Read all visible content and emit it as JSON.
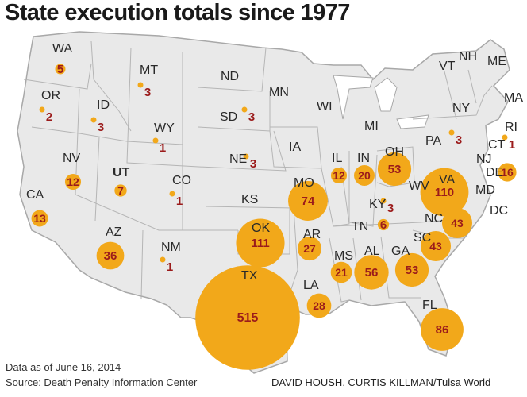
{
  "title": "State execution totals since 1977",
  "footer": {
    "data_date": "Data as of June 16, 2014",
    "source": "Source: Death Penalty Information Center",
    "credit": "DAVID HOUSH, CURTIS KILLMAN/Tulsa World"
  },
  "colors": {
    "bubble": "#f2a81a",
    "value": "#9b1b1b",
    "land": "#e9e9e9",
    "border": "#a8a8a8"
  },
  "states_with_values": [
    {
      "abbr": "WA",
      "value": 5
    },
    {
      "abbr": "OR",
      "value": 2
    },
    {
      "abbr": "ID",
      "value": 3
    },
    {
      "abbr": "MT",
      "value": 3
    },
    {
      "abbr": "WY",
      "value": 1
    },
    {
      "abbr": "SD",
      "value": 3
    },
    {
      "abbr": "NE",
      "value": 3
    },
    {
      "abbr": "NV",
      "value": 12
    },
    {
      "abbr": "UT",
      "value": 7
    },
    {
      "abbr": "CO",
      "value": 1
    },
    {
      "abbr": "CA",
      "value": 13
    },
    {
      "abbr": "AZ",
      "value": 36
    },
    {
      "abbr": "NM",
      "value": 1
    },
    {
      "abbr": "OK",
      "value": 111
    },
    {
      "abbr": "TX",
      "value": 515
    },
    {
      "abbr": "MO",
      "value": 74
    },
    {
      "abbr": "AR",
      "value": 27
    },
    {
      "abbr": "LA",
      "value": 28
    },
    {
      "abbr": "IL",
      "value": 12
    },
    {
      "abbr": "IN",
      "value": 20
    },
    {
      "abbr": "OH",
      "value": 53
    },
    {
      "abbr": "KY",
      "value": 3
    },
    {
      "abbr": "TN",
      "value": 6
    },
    {
      "abbr": "MS",
      "value": 21
    },
    {
      "abbr": "AL",
      "value": 56
    },
    {
      "abbr": "GA",
      "value": 53
    },
    {
      "abbr": "FL",
      "value": 86
    },
    {
      "abbr": "SC",
      "value": 43
    },
    {
      "abbr": "NC",
      "value": 43
    },
    {
      "abbr": "VA",
      "value": 110
    },
    {
      "abbr": "PA",
      "value": 3
    },
    {
      "abbr": "CT",
      "value": 1
    },
    {
      "abbr": "DE",
      "value": 16
    }
  ],
  "states_without_values": [
    "ND",
    "MN",
    "WI",
    "MI",
    "IA",
    "KS",
    "WV",
    "NY",
    "VT",
    "NH",
    "ME",
    "MA",
    "RI",
    "NJ",
    "MD",
    "DC"
  ]
}
